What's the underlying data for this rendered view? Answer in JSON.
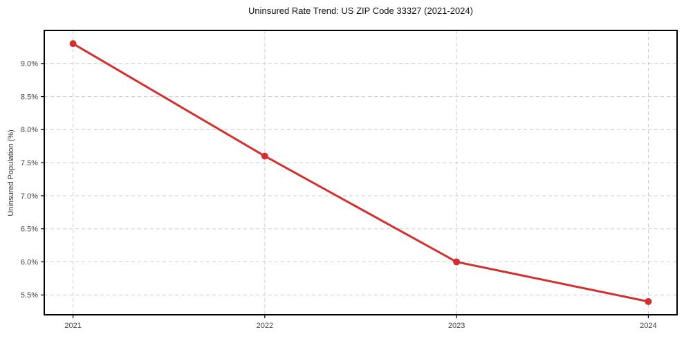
{
  "figure": {
    "title": "Uninsured Rate Trend: US ZIP Code 33327 (2021-2024)"
  },
  "chart_data": {
    "type": "line",
    "title": "Uninsured Rate Trend: US ZIP Code 33327 (2021-2024)",
    "xlabel": "",
    "ylabel": "Uninsured Population (%)",
    "x": [
      2021,
      2022,
      2023,
      2024
    ],
    "x_tick_labels": [
      "2021",
      "2022",
      "2023",
      "2024"
    ],
    "values": [
      9.3,
      7.6,
      6.0,
      5.4
    ],
    "series_name": "Uninsured rate",
    "y_ticks": [
      5.5,
      6.0,
      6.5,
      7.0,
      7.5,
      8.0,
      8.5,
      9.0
    ],
    "y_tick_labels": [
      "5.5%",
      "6.0%",
      "6.5%",
      "7.0%",
      "7.5%",
      "8.0%",
      "8.5%",
      "9.0%"
    ],
    "xlim": [
      2020.85,
      2024.15
    ],
    "ylim": [
      5.2,
      9.5
    ],
    "grid": true,
    "grid_style": "dashed",
    "legend": "none",
    "colors": {
      "line": "#d32f2f",
      "marker": "#d32f2f",
      "grid": "#cccccc",
      "spine": "#000000"
    },
    "marker": "circle",
    "marker_radius": 5
  }
}
